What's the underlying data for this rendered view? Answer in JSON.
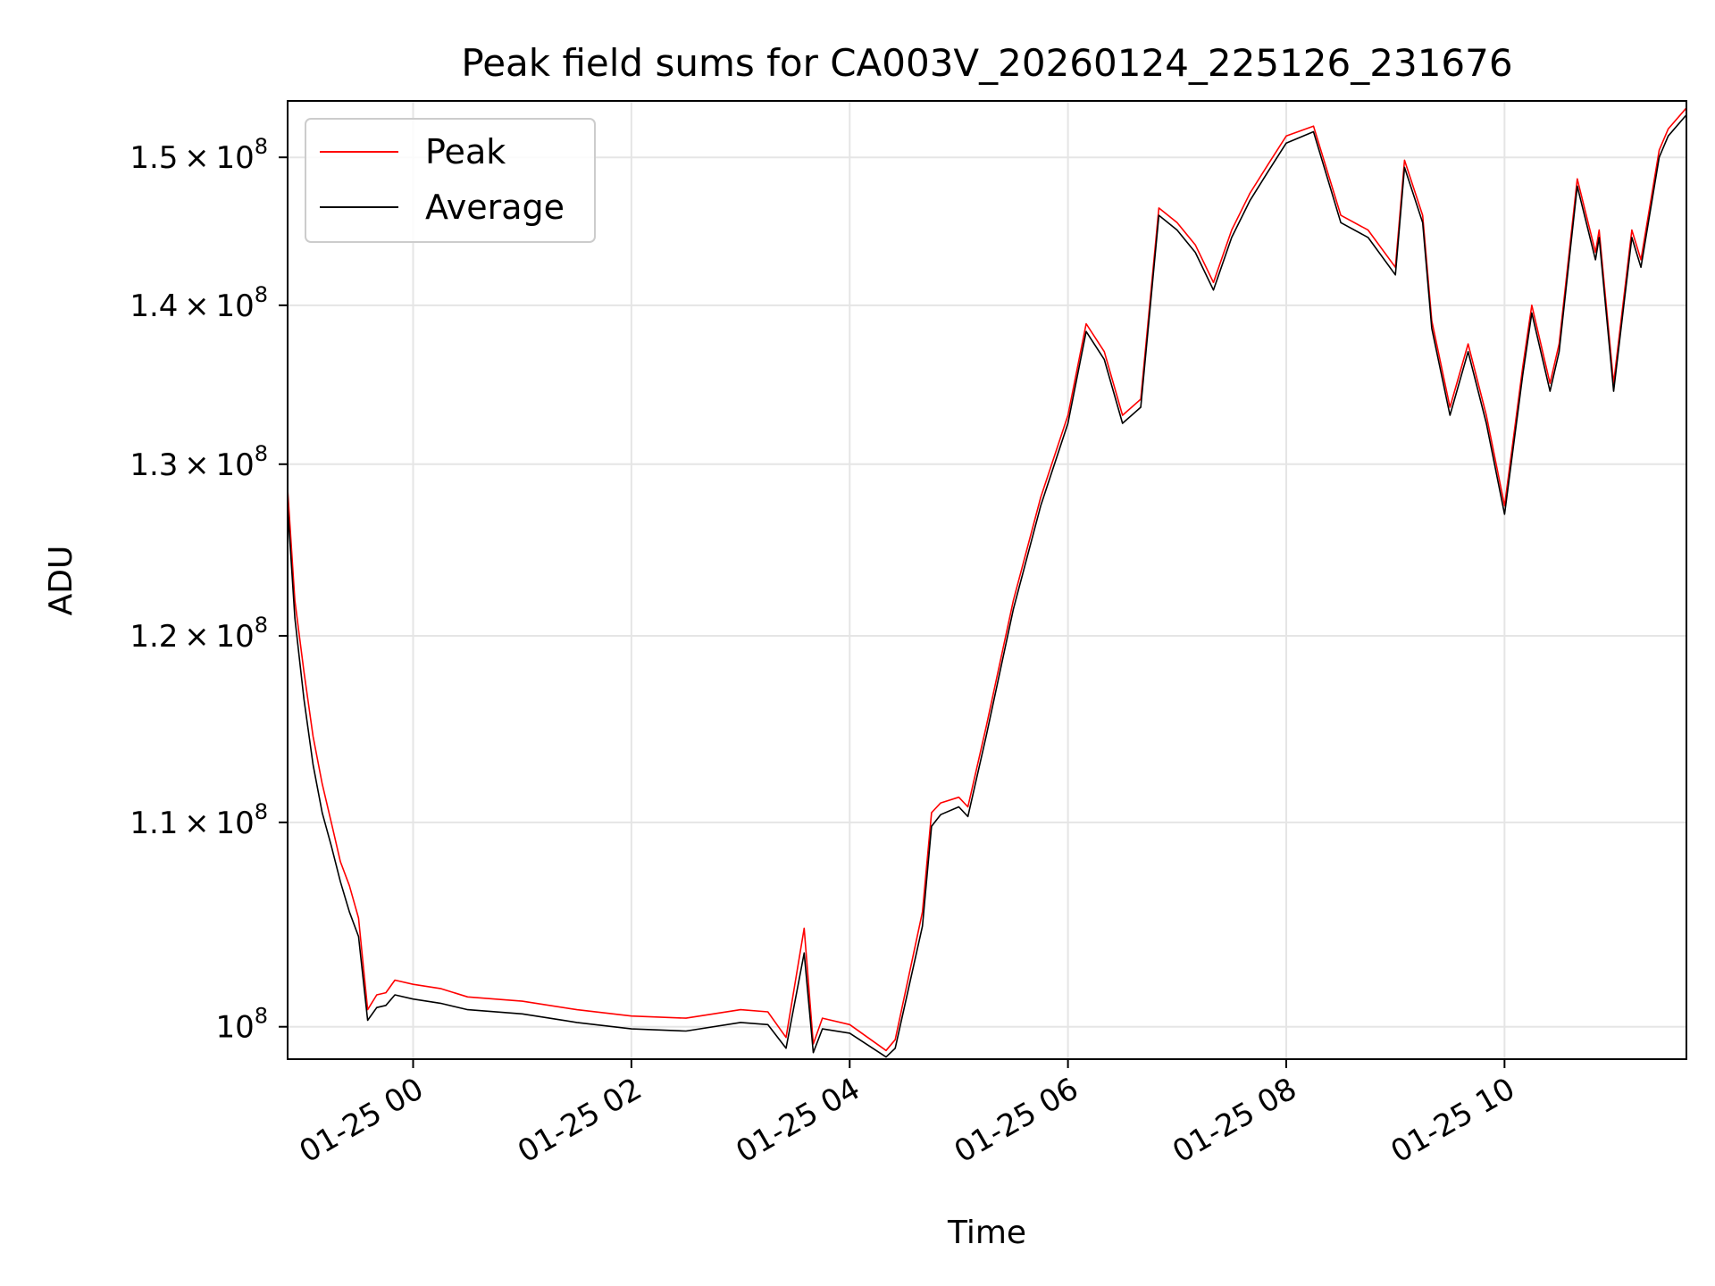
{
  "chart_data": {
    "type": "line",
    "title": "Peak field sums for CA003V_20260124_225126_231676",
    "xlabel": "Time",
    "ylabel": "ADU",
    "y_scale": "log",
    "grid": true,
    "legend_position": "top-left",
    "xlim": [
      "2026-01-24 22:51",
      "2026-01-25 11:40"
    ],
    "ylim": [
      98500000,
      154000000
    ],
    "x_ticks": [
      {
        "value": "2026-01-25 00:00",
        "label": "01-25 00"
      },
      {
        "value": "2026-01-25 02:00",
        "label": "01-25 02"
      },
      {
        "value": "2026-01-25 04:00",
        "label": "01-25 04"
      },
      {
        "value": "2026-01-25 06:00",
        "label": "01-25 06"
      },
      {
        "value": "2026-01-25 08:00",
        "label": "01-25 08"
      },
      {
        "value": "2026-01-25 10:00",
        "label": "01-25 10"
      }
    ],
    "y_ticks": [
      {
        "value": 100000000,
        "mantissa": "",
        "exponent": "8",
        "label": "10^8"
      },
      {
        "value": 110000000,
        "mantissa": "1.1",
        "exponent": "8",
        "label": "1.1×10^8"
      },
      {
        "value": 120000000,
        "mantissa": "1.2",
        "exponent": "8",
        "label": "1.2×10^8"
      },
      {
        "value": 130000000,
        "mantissa": "1.3",
        "exponent": "8",
        "label": "1.3×10^8"
      },
      {
        "value": 140000000,
        "mantissa": "1.4",
        "exponent": "8",
        "label": "1.4×10^8"
      },
      {
        "value": 150000000,
        "mantissa": "1.5",
        "exponent": "8",
        "label": "1.5×10^8"
      }
    ],
    "series": [
      {
        "name": "Peak",
        "color": "#ff0000",
        "x": [
          "2026-01-24 22:51",
          "2026-01-24 22:55",
          "2026-01-24 23:00",
          "2026-01-24 23:05",
          "2026-01-24 23:10",
          "2026-01-24 23:15",
          "2026-01-24 23:20",
          "2026-01-24 23:25",
          "2026-01-24 23:30",
          "2026-01-24 23:35",
          "2026-01-24 23:40",
          "2026-01-24 23:45",
          "2026-01-24 23:50",
          "2026-01-25 00:00",
          "2026-01-25 00:15",
          "2026-01-25 00:30",
          "2026-01-25 01:00",
          "2026-01-25 01:30",
          "2026-01-25 02:00",
          "2026-01-25 02:30",
          "2026-01-25 03:00",
          "2026-01-25 03:15",
          "2026-01-25 03:25",
          "2026-01-25 03:35",
          "2026-01-25 03:40",
          "2026-01-25 03:45",
          "2026-01-25 04:00",
          "2026-01-25 04:20",
          "2026-01-25 04:25",
          "2026-01-25 04:40",
          "2026-01-25 04:45",
          "2026-01-25 04:50",
          "2026-01-25 05:00",
          "2026-01-25 05:05",
          "2026-01-25 05:15",
          "2026-01-25 05:30",
          "2026-01-25 05:45",
          "2026-01-25 06:00",
          "2026-01-25 06:10",
          "2026-01-25 06:20",
          "2026-01-25 06:30",
          "2026-01-25 06:40",
          "2026-01-25 06:50",
          "2026-01-25 07:00",
          "2026-01-25 07:10",
          "2026-01-25 07:20",
          "2026-01-25 07:30",
          "2026-01-25 07:40",
          "2026-01-25 07:50",
          "2026-01-25 08:00",
          "2026-01-25 08:15",
          "2026-01-25 08:30",
          "2026-01-25 08:45",
          "2026-01-25 09:00",
          "2026-01-25 09:05",
          "2026-01-25 09:15",
          "2026-01-25 09:20",
          "2026-01-25 09:30",
          "2026-01-25 09:40",
          "2026-01-25 09:50",
          "2026-01-25 10:00",
          "2026-01-25 10:10",
          "2026-01-25 10:15",
          "2026-01-25 10:25",
          "2026-01-25 10:30",
          "2026-01-25 10:40",
          "2026-01-25 10:50",
          "2026-01-25 10:52",
          "2026-01-25 11:00",
          "2026-01-25 11:10",
          "2026-01-25 11:15",
          "2026-01-25 11:25",
          "2026-01-25 11:30",
          "2026-01-25 11:40"
        ],
        "values": [
          128500000,
          122000000,
          118000000,
          114500000,
          112000000,
          110000000,
          108000000,
          106800000,
          105200000,
          100800000,
          101500000,
          101600000,
          102200000,
          102000000,
          101800000,
          101400000,
          101200000,
          100800000,
          100500000,
          100400000,
          100800000,
          100700000,
          99500000,
          104700000,
          99200000,
          100400000,
          100100000,
          98900000,
          99400000,
          105500000,
          110500000,
          111000000,
          111300000,
          110800000,
          115000000,
          122000000,
          128000000,
          133000000,
          138800000,
          137000000,
          133000000,
          134000000,
          146500000,
          145500000,
          144000000,
          141500000,
          145000000,
          147500000,
          149500000,
          151500000,
          152200000,
          146000000,
          145000000,
          142500000,
          149800000,
          146000000,
          139000000,
          133500000,
          137500000,
          133000000,
          127500000,
          136000000,
          140000000,
          135000000,
          137500000,
          148500000,
          143500000,
          145000000,
          135000000,
          145000000,
          143000000,
          150500000,
          152000000,
          153500000
        ]
      },
      {
        "name": "Average",
        "color": "#000000",
        "x": [
          "2026-01-24 22:51",
          "2026-01-24 22:55",
          "2026-01-24 23:00",
          "2026-01-24 23:05",
          "2026-01-24 23:10",
          "2026-01-24 23:15",
          "2026-01-24 23:20",
          "2026-01-24 23:25",
          "2026-01-24 23:30",
          "2026-01-24 23:35",
          "2026-01-24 23:40",
          "2026-01-24 23:45",
          "2026-01-24 23:50",
          "2026-01-25 00:00",
          "2026-01-25 00:15",
          "2026-01-25 00:30",
          "2026-01-25 01:00",
          "2026-01-25 01:30",
          "2026-01-25 02:00",
          "2026-01-25 02:30",
          "2026-01-25 03:00",
          "2026-01-25 03:15",
          "2026-01-25 03:25",
          "2026-01-25 03:35",
          "2026-01-25 03:40",
          "2026-01-25 03:45",
          "2026-01-25 04:00",
          "2026-01-25 04:20",
          "2026-01-25 04:25",
          "2026-01-25 04:40",
          "2026-01-25 04:45",
          "2026-01-25 04:50",
          "2026-01-25 05:00",
          "2026-01-25 05:05",
          "2026-01-25 05:15",
          "2026-01-25 05:30",
          "2026-01-25 05:45",
          "2026-01-25 06:00",
          "2026-01-25 06:10",
          "2026-01-25 06:20",
          "2026-01-25 06:30",
          "2026-01-25 06:40",
          "2026-01-25 06:50",
          "2026-01-25 07:00",
          "2026-01-25 07:10",
          "2026-01-25 07:20",
          "2026-01-25 07:30",
          "2026-01-25 07:40",
          "2026-01-25 07:50",
          "2026-01-25 08:00",
          "2026-01-25 08:15",
          "2026-01-25 08:30",
          "2026-01-25 08:45",
          "2026-01-25 09:00",
          "2026-01-25 09:05",
          "2026-01-25 09:15",
          "2026-01-25 09:20",
          "2026-01-25 09:30",
          "2026-01-25 09:40",
          "2026-01-25 09:50",
          "2026-01-25 10:00",
          "2026-01-25 10:10",
          "2026-01-25 10:15",
          "2026-01-25 10:25",
          "2026-01-25 10:30",
          "2026-01-25 10:40",
          "2026-01-25 10:50",
          "2026-01-25 10:52",
          "2026-01-25 11:00",
          "2026-01-25 11:10",
          "2026-01-25 11:15",
          "2026-01-25 11:25",
          "2026-01-25 11:30",
          "2026-01-25 11:40"
        ],
        "values": [
          127500000,
          121000000,
          116500000,
          113000000,
          110500000,
          108800000,
          107000000,
          105500000,
          104300000,
          100300000,
          100900000,
          101000000,
          101500000,
          101300000,
          101100000,
          100800000,
          100600000,
          100200000,
          99900000,
          99800000,
          100200000,
          100100000,
          99000000,
          103500000,
          98800000,
          99900000,
          99700000,
          98600000,
          99000000,
          104800000,
          109800000,
          110400000,
          110800000,
          110300000,
          114500000,
          121500000,
          127500000,
          132500000,
          138300000,
          136500000,
          132500000,
          133500000,
          146000000,
          145000000,
          143500000,
          141000000,
          144500000,
          147000000,
          149000000,
          151000000,
          151800000,
          145500000,
          144500000,
          142000000,
          149300000,
          145500000,
          138500000,
          133000000,
          137000000,
          132500000,
          127000000,
          135500000,
          139500000,
          134500000,
          137000000,
          148000000,
          143000000,
          144500000,
          134500000,
          144500000,
          142500000,
          150000000,
          151500000,
          153000000
        ]
      }
    ]
  }
}
